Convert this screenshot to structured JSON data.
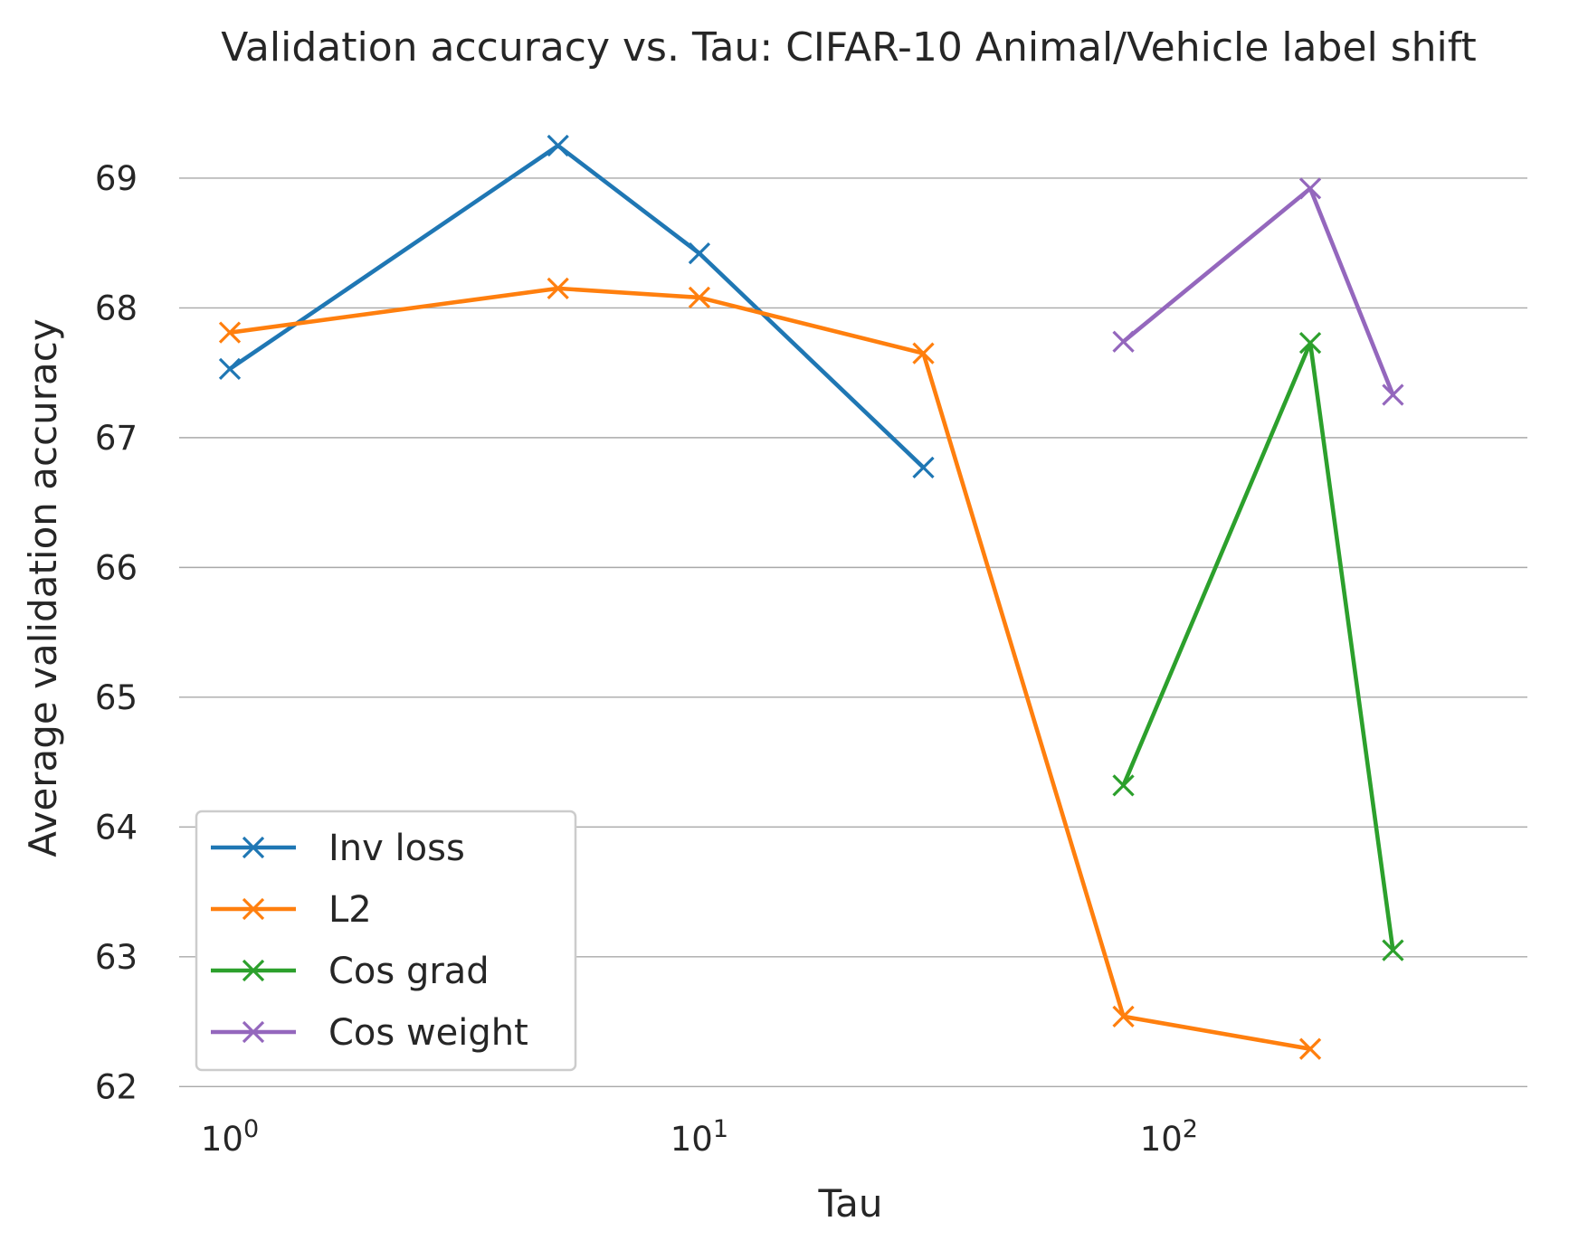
{
  "chart_data": {
    "type": "line",
    "title": "Validation accuracy vs. Tau: CIFAR-10 Animal/Vehicle label shift",
    "xlabel": "Tau",
    "ylabel": "Average validation accuracy",
    "xscale": "log",
    "xlim": [
      0.78,
      580
    ],
    "ylim": [
      61.8,
      69.55
    ],
    "grid": "horizontal",
    "yticks": [
      62,
      63,
      64,
      65,
      66,
      67,
      68,
      69
    ],
    "yticklabels": [
      "62",
      "63",
      "64",
      "65",
      "66",
      "67",
      "68",
      "69"
    ],
    "xticks": [
      {
        "value": 1,
        "base": "10",
        "exp": "0"
      },
      {
        "value": 10,
        "base": "10",
        "exp": "1"
      },
      {
        "value": 100,
        "base": "10",
        "exp": "2"
      }
    ],
    "marker": "x",
    "legend_position": "lower-left",
    "series": [
      {
        "name": "Inv loss",
        "color": "#1f77b4",
        "x": [
          1,
          5,
          10,
          30
        ],
        "y": [
          67.53,
          69.25,
          68.42,
          66.77
        ]
      },
      {
        "name": "L2",
        "color": "#ff7f0e",
        "x": [
          1,
          5,
          10,
          30,
          80,
          200
        ],
        "y": [
          67.81,
          68.15,
          68.08,
          67.65,
          62.54,
          62.29
        ]
      },
      {
        "name": "Cos grad",
        "color": "#2ca02c",
        "x": [
          80,
          200,
          300
        ],
        "y": [
          64.32,
          67.73,
          63.05
        ]
      },
      {
        "name": "Cos weight",
        "color": "#9467bd",
        "x": [
          80,
          200,
          300
        ],
        "y": [
          67.74,
          68.92,
          67.33
        ]
      }
    ]
  }
}
